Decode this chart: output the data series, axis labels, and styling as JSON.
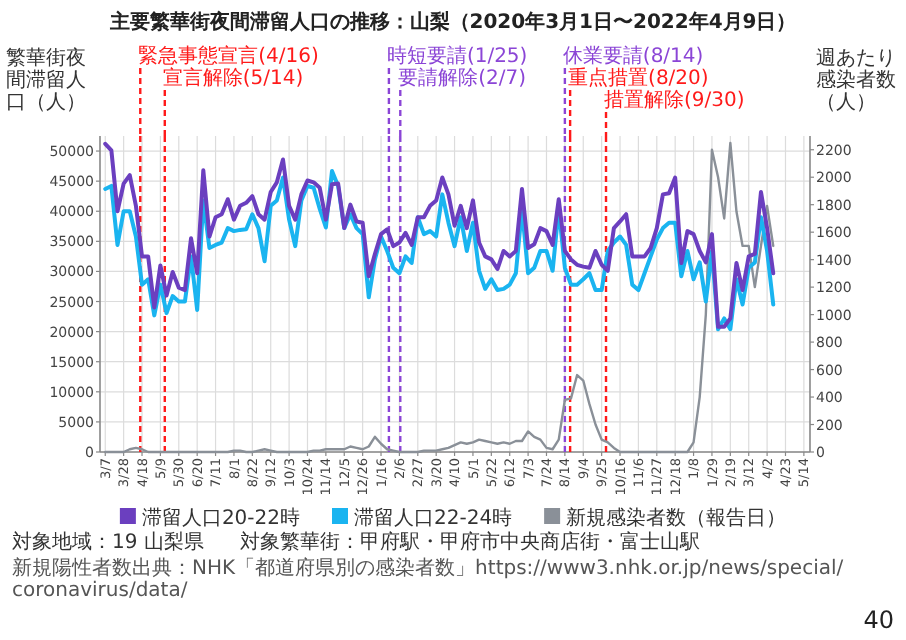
{
  "chart_data": {
    "type": "line",
    "title": "主要繁華街夜間滞留人口の推移：山梨（2020年3月1日〜2022年4月9日）",
    "ylabel": "繁華街夜間滞留人口（人）",
    "y2label": "週あたり感染者数（人）",
    "x": [
      "2020-03-07",
      "2020-03-14",
      "2020-03-21",
      "2020-03-28",
      "2020-04-04",
      "2020-04-11",
      "2020-04-18",
      "2020-04-25",
      "2020-05-02",
      "2020-05-09",
      "2020-05-16",
      "2020-05-23",
      "2020-05-30",
      "2020-06-06",
      "2020-06-13",
      "2020-06-20",
      "2020-06-27",
      "2020-07-04",
      "2020-07-11",
      "2020-07-18",
      "2020-07-25",
      "2020-08-01",
      "2020-08-08",
      "2020-08-15",
      "2020-08-22",
      "2020-08-29",
      "2020-09-05",
      "2020-09-12",
      "2020-09-19",
      "2020-09-26",
      "2020-10-03",
      "2020-10-10",
      "2020-10-17",
      "2020-10-24",
      "2020-10-31",
      "2020-11-07",
      "2020-11-14",
      "2020-11-21",
      "2020-11-28",
      "2020-12-05",
      "2020-12-12",
      "2020-12-19",
      "2020-12-26",
      "2021-01-02",
      "2021-01-09",
      "2021-01-16",
      "2021-01-23",
      "2021-01-30",
      "2021-02-06",
      "2021-02-13",
      "2021-02-20",
      "2021-02-27",
      "2021-03-06",
      "2021-03-13",
      "2021-03-20",
      "2021-03-27",
      "2021-04-03",
      "2021-04-10",
      "2021-04-17",
      "2021-04-24",
      "2021-05-01",
      "2021-05-08",
      "2021-05-15",
      "2021-05-22",
      "2021-05-29",
      "2021-06-05",
      "2021-06-12",
      "2021-06-19",
      "2021-06-26",
      "2021-07-03",
      "2021-07-10",
      "2021-07-17",
      "2021-07-24",
      "2021-07-31",
      "2021-08-07",
      "2021-08-14",
      "2021-08-21",
      "2021-08-28",
      "2021-09-04",
      "2021-09-11",
      "2021-09-18",
      "2021-09-25",
      "2021-10-02",
      "2021-10-09",
      "2021-10-16",
      "2021-10-23",
      "2021-10-30",
      "2021-11-06",
      "2021-11-13",
      "2021-11-20",
      "2021-11-27",
      "2021-12-04",
      "2021-12-11",
      "2021-12-18",
      "2021-12-25",
      "2022-01-01",
      "2022-01-08",
      "2022-01-15",
      "2022-01-22",
      "2022-01-29",
      "2022-02-05",
      "2022-02-12",
      "2022-02-19",
      "2022-02-26",
      "2022-03-05",
      "2022-03-12",
      "2022-03-19",
      "2022-03-26",
      "2022-04-02",
      "2022-04-09"
    ],
    "xlim": [
      "2020-03-01",
      "2022-05-21"
    ],
    "xticks": [
      {
        "value": "2020-03-07",
        "label": "3/7"
      },
      {
        "value": "2020-03-28",
        "label": "3/28"
      },
      {
        "value": "2020-04-18",
        "label": "4/18"
      },
      {
        "value": "2020-05-09",
        "label": "5/9"
      },
      {
        "value": "2020-05-30",
        "label": "5/30"
      },
      {
        "value": "2020-06-20",
        "label": "6/20"
      },
      {
        "value": "2020-07-11",
        "label": "7/11"
      },
      {
        "value": "2020-08-01",
        "label": "8/1"
      },
      {
        "value": "2020-08-22",
        "label": "8/22"
      },
      {
        "value": "2020-09-12",
        "label": "9/12"
      },
      {
        "value": "2020-10-03",
        "label": "10/3"
      },
      {
        "value": "2020-10-24",
        "label": "10/24"
      },
      {
        "value": "2020-11-14",
        "label": "11/14"
      },
      {
        "value": "2020-12-05",
        "label": "12/5"
      },
      {
        "value": "2020-12-26",
        "label": "12/26"
      },
      {
        "value": "2021-01-16",
        "label": "1/16"
      },
      {
        "value": "2021-02-06",
        "label": "2/6"
      },
      {
        "value": "2021-02-27",
        "label": "2/27"
      },
      {
        "value": "2021-03-20",
        "label": "3/20"
      },
      {
        "value": "2021-04-10",
        "label": "4/10"
      },
      {
        "value": "2021-05-01",
        "label": "5/1"
      },
      {
        "value": "2021-05-22",
        "label": "5/22"
      },
      {
        "value": "2021-06-12",
        "label": "6/12"
      },
      {
        "value": "2021-07-03",
        "label": "7/3"
      },
      {
        "value": "2021-07-24",
        "label": "7/24"
      },
      {
        "value": "2021-08-14",
        "label": "8/14"
      },
      {
        "value": "2021-09-04",
        "label": "9/4"
      },
      {
        "value": "2021-09-25",
        "label": "9/25"
      },
      {
        "value": "2021-10-16",
        "label": "10/16"
      },
      {
        "value": "2021-11-06",
        "label": "11/6"
      },
      {
        "value": "2021-11-27",
        "label": "11/27"
      },
      {
        "value": "2021-12-18",
        "label": "12/18"
      },
      {
        "value": "2022-01-08",
        "label": "1/8"
      },
      {
        "value": "2022-01-29",
        "label": "1/29"
      },
      {
        "value": "2022-02-19",
        "label": "2/19"
      },
      {
        "value": "2022-03-12",
        "label": "3/12"
      },
      {
        "value": "2022-04-02",
        "label": "4/2"
      },
      {
        "value": "2022-04-23",
        "label": "4/23"
      },
      {
        "value": "2022-05-14",
        "label": "5/14"
      }
    ],
    "ylim": [
      0,
      52500
    ],
    "yticks": [
      0,
      5000,
      10000,
      15000,
      20000,
      25000,
      30000,
      35000,
      40000,
      45000,
      50000
    ],
    "y2lim": [
      0,
      2300
    ],
    "y2ticks": [
      0,
      200,
      400,
      600,
      800,
      1000,
      1200,
      1400,
      1600,
      1800,
      2000,
      2200
    ],
    "series": [
      {
        "name": "滞留人口20-22時",
        "color": "#6b3fbf",
        "values": [
          51200,
          50100,
          40000,
          44600,
          46000,
          40900,
          32500,
          32500,
          24000,
          31000,
          26000,
          29900,
          27300,
          26900,
          35500,
          29700,
          46800,
          35800,
          39000,
          39500,
          42000,
          38600,
          40900,
          41400,
          42500,
          39500,
          38600,
          43200,
          44800,
          48600,
          40900,
          38600,
          42800,
          45100,
          44800,
          43900,
          38600,
          44500,
          44600,
          37200,
          41100,
          38300,
          38100,
          29200,
          32900,
          36200,
          37000,
          34200,
          34800,
          36400,
          34400,
          39000,
          39000,
          40900,
          41800,
          45600,
          42800,
          37600,
          40900,
          37200,
          41800,
          34800,
          32500,
          32000,
          30400,
          33400,
          32500,
          33400,
          43700,
          33900,
          34500,
          37200,
          36700,
          34400,
          42000,
          33400,
          32000,
          31100,
          30800,
          30600,
          33400,
          31100,
          30100,
          37200,
          38300,
          39500,
          32500,
          32500,
          32500,
          33900,
          37200,
          42800,
          43000,
          45600,
          31400,
          36700,
          36200,
          33400,
          31500,
          36200,
          20800,
          20800,
          22200,
          31400,
          26900,
          32500,
          32900,
          43200,
          37200,
          29700
        ]
      },
      {
        "name": "滞留人口22-24時",
        "color": "#1ab4f0",
        "values": [
          43700,
          44200,
          34400,
          40000,
          40000,
          35800,
          27800,
          28700,
          22700,
          27800,
          23100,
          25900,
          25000,
          25000,
          32500,
          23600,
          41800,
          33900,
          34400,
          34800,
          37200,
          36700,
          36900,
          37000,
          39500,
          37200,
          31700,
          40900,
          41800,
          45600,
          38600,
          34200,
          41800,
          44200,
          43900,
          40400,
          37300,
          46700,
          44200,
          37200,
          39500,
          37200,
          36200,
          25700,
          32000,
          35800,
          33400,
          30600,
          29700,
          32500,
          31400,
          39000,
          36200,
          36700,
          35800,
          42800,
          38100,
          34200,
          39000,
          33400,
          38100,
          30100,
          27100,
          28700,
          26900,
          27100,
          27800,
          29700,
          40400,
          29700,
          30600,
          33400,
          33400,
          30100,
          40400,
          30600,
          27800,
          27800,
          28700,
          29700,
          26900,
          26900,
          33400,
          34800,
          35800,
          34400,
          27800,
          26900,
          29700,
          32500,
          35300,
          37200,
          38100,
          38100,
          29200,
          33400,
          28700,
          31500,
          25000,
          33400,
          20400,
          22200,
          20400,
          28700,
          24500,
          30600,
          31500,
          39000,
          33400,
          24500
        ]
      },
      {
        "name": "新規感染者数（報告日）",
        "color": "#8a9098",
        "axis": "y2",
        "values": [
          0,
          0,
          0,
          0,
          20,
          30,
          20,
          0,
          0,
          0,
          0,
          0,
          0,
          0,
          0,
          0,
          0,
          0,
          0,
          0,
          0,
          10,
          10,
          0,
          0,
          10,
          20,
          10,
          0,
          0,
          0,
          0,
          0,
          0,
          10,
          10,
          20,
          20,
          20,
          20,
          40,
          30,
          20,
          40,
          110,
          60,
          20,
          10,
          0,
          0,
          0,
          0,
          10,
          10,
          10,
          20,
          30,
          50,
          70,
          60,
          70,
          90,
          80,
          70,
          60,
          70,
          60,
          80,
          80,
          150,
          110,
          90,
          30,
          20,
          90,
          380,
          390,
          560,
          520,
          350,
          200,
          90,
          70,
          30,
          0,
          0,
          0,
          0,
          0,
          0,
          0,
          0,
          0,
          0,
          0,
          0,
          70,
          400,
          1000,
          2200,
          2000,
          1700,
          2250,
          1750,
          1500,
          1500,
          1200,
          1500,
          1790,
          1500
        ]
      }
    ],
    "ref_lines": [
      {
        "axis": "x",
        "value": "2020-04-16",
        "label": "緊急事態宣言(4/16)",
        "color": "#ff1a1a",
        "line_style": "dashed"
      },
      {
        "axis": "x",
        "value": "2020-05-14",
        "label": "宣言解除(5/14)",
        "color": "#ff1a1a",
        "line_style": "dashed"
      },
      {
        "axis": "x",
        "value": "2021-01-25",
        "label": "時短要請(1/25)",
        "color": "#8b45d6",
        "line_style": "dashed"
      },
      {
        "axis": "x",
        "value": "2021-02-07",
        "label": "要請解除(2/7)",
        "color": "#8b45d6",
        "line_style": "dashed"
      },
      {
        "axis": "x",
        "value": "2021-08-14",
        "label": "休業要請(8/14)",
        "color": "#8b45d6",
        "line_style": "dashed"
      },
      {
        "axis": "x",
        "value": "2021-08-20",
        "label": "重点措置(8/20)",
        "color": "#ff1a1a",
        "line_style": "dashed"
      },
      {
        "axis": "x",
        "value": "2021-09-30",
        "label": "措置解除(9/30)",
        "color": "#ff1a1a",
        "line_style": "dashed"
      }
    ],
    "grid": true,
    "legend": "bottom",
    "annotations": [
      "対象地域：19 山梨県",
      "対象繁華街：甲府駅・甲府市中央商店街・富士山駅",
      "新規陽性者数出典：NHK「都道府県別の感染者数」https://www3.nhk.or.jp/news/special/coronavirus/data/",
      "40"
    ]
  }
}
